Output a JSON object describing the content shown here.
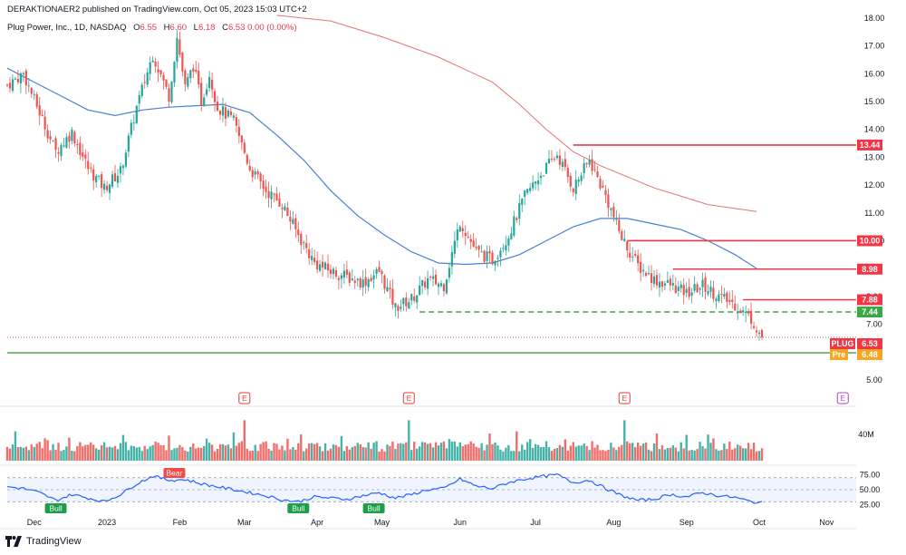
{
  "header": {
    "published": "DERAKTIONAER2 published on TradingView.com, Oct 05, 2023 15:03 UTC+2",
    "symbol": "Plug Power, Inc., 1D, NASDAQ",
    "o_label": "O",
    "o_value": "6.55",
    "h_label": "H",
    "h_value": "6.60",
    "l_label": "L",
    "l_value": "6.18",
    "c_label": "C",
    "c_value": "6.53",
    "change": "0.00 (0.00%)"
  },
  "footer": {
    "brand": "TradingView"
  },
  "colors": {
    "up": "#26a69a",
    "down": "#ef5350",
    "line_red": "#f23645",
    "ma50": "#4a7fd4",
    "ma200": "#e57373",
    "rsi": "#2962ff",
    "support": "#43a047"
  },
  "chart_data": {
    "type": "candlestick",
    "symbol": "PLUG",
    "exchange": "NASDAQ",
    "timeframe": "1D",
    "x_ticks": [
      "Dec",
      "2023",
      "Feb",
      "Mar",
      "Apr",
      "May",
      "Jun",
      "Jul",
      "Aug",
      "Sep",
      "Oct",
      "Nov"
    ],
    "y_ticks": [
      "18.00",
      "17.00",
      "16.00",
      "15.00",
      "14.00",
      "13.00",
      "12.00",
      "11.00",
      "10.00",
      "9.00",
      "8.00",
      "7.00",
      "6.00",
      "5.00"
    ],
    "ylim": [
      4.8,
      18.0
    ],
    "price_path": [
      [
        0,
        15.6
      ],
      [
        6,
        16.0
      ],
      [
        12,
        14.6
      ],
      [
        18,
        13.2
      ],
      [
        24,
        13.9
      ],
      [
        30,
        12.6
      ],
      [
        36,
        11.9
      ],
      [
        42,
        12.5
      ],
      [
        48,
        14.8
      ],
      [
        54,
        16.7
      ],
      [
        60,
        15.2
      ],
      [
        63,
        17.3
      ],
      [
        66,
        15.5
      ],
      [
        69,
        16.3
      ],
      [
        72,
        15.0
      ],
      [
        75,
        16.0
      ],
      [
        78,
        14.8
      ],
      [
        84,
        14.3
      ],
      [
        90,
        12.6
      ],
      [
        96,
        11.8
      ],
      [
        102,
        11.3
      ],
      [
        108,
        10.2
      ],
      [
        114,
        9.2
      ],
      [
        120,
        8.9
      ],
      [
        126,
        8.7
      ],
      [
        132,
        8.5
      ],
      [
        138,
        8.9
      ],
      [
        144,
        7.6
      ],
      [
        150,
        7.9
      ],
      [
        156,
        8.6
      ],
      [
        162,
        8.4
      ],
      [
        168,
        10.7
      ],
      [
        174,
        9.6
      ],
      [
        180,
        9.3
      ],
      [
        186,
        10.2
      ],
      [
        192,
        11.6
      ],
      [
        198,
        12.4
      ],
      [
        204,
        13.1
      ],
      [
        210,
        11.9
      ],
      [
        216,
        12.9
      ],
      [
        222,
        11.6
      ],
      [
        228,
        10.1
      ],
      [
        234,
        9.1
      ],
      [
        240,
        8.6
      ],
      [
        246,
        8.4
      ],
      [
        252,
        8.1
      ],
      [
        258,
        8.4
      ],
      [
        264,
        8.0
      ],
      [
        270,
        7.7
      ],
      [
        276,
        7.2
      ],
      [
        280,
        6.53
      ]
    ],
    "ma50_path": [
      [
        0,
        16.2
      ],
      [
        10,
        15.7
      ],
      [
        20,
        15.2
      ],
      [
        30,
        14.7
      ],
      [
        40,
        14.5
      ],
      [
        50,
        14.7
      ],
      [
        60,
        14.8
      ],
      [
        70,
        14.85
      ],
      [
        80,
        14.9
      ],
      [
        90,
        14.6
      ],
      [
        100,
        13.8
      ],
      [
        110,
        12.9
      ],
      [
        120,
        11.8
      ],
      [
        130,
        10.9
      ],
      [
        140,
        10.2
      ],
      [
        150,
        9.6
      ],
      [
        160,
        9.2
      ],
      [
        170,
        9.15
      ],
      [
        180,
        9.2
      ],
      [
        190,
        9.5
      ],
      [
        200,
        10.0
      ],
      [
        210,
        10.5
      ],
      [
        220,
        10.8
      ],
      [
        230,
        10.8
      ],
      [
        240,
        10.6
      ],
      [
        250,
        10.4
      ],
      [
        260,
        10.0
      ],
      [
        270,
        9.5
      ],
      [
        278,
        9.0
      ]
    ],
    "ma200_path": [
      [
        100,
        18.1
      ],
      [
        120,
        17.9
      ],
      [
        140,
        17.3
      ],
      [
        160,
        16.6
      ],
      [
        180,
        15.7
      ],
      [
        190,
        14.9
      ],
      [
        200,
        14.0
      ],
      [
        210,
        13.2
      ],
      [
        220,
        12.7
      ],
      [
        230,
        12.3
      ],
      [
        240,
        11.9
      ],
      [
        250,
        11.6
      ],
      [
        260,
        11.3
      ],
      [
        278,
        11.05
      ]
    ],
    "horizontal_levels": [
      {
        "label": "13.44",
        "value": 13.44,
        "start": 210
      },
      {
        "label": "10.00",
        "value": 10.0,
        "start": 230
      },
      {
        "label": "8.98",
        "value": 8.98,
        "start": 247
      },
      {
        "label": "7.88",
        "value": 7.88,
        "start": 273
      },
      {
        "label": "7.44",
        "value": 7.44,
        "start": 153,
        "style": "dashed-green"
      },
      {
        "label": "5.97",
        "value": 5.97,
        "start": 0,
        "style": "solid-green"
      }
    ],
    "price_tags": [
      {
        "name": "PLUG",
        "label": "6.53"
      },
      {
        "name": "Pre",
        "label": "6.48"
      }
    ],
    "earnings_markers": [
      {
        "day": 88,
        "label": "E"
      },
      {
        "day": 149,
        "label": "E"
      },
      {
        "day": 229,
        "label": "E"
      },
      {
        "day": 310,
        "label": "E"
      }
    ],
    "volume": {
      "axis_label": "40M",
      "axis_value": 40
    },
    "rsi": {
      "y_ticks": [
        "75.00",
        "50.00",
        "25.00"
      ],
      "ylim": [
        15,
        85
      ],
      "path": [
        [
          0,
          55
        ],
        [
          6,
          52
        ],
        [
          12,
          45
        ],
        [
          18,
          32
        ],
        [
          24,
          42
        ],
        [
          30,
          36
        ],
        [
          36,
          30
        ],
        [
          42,
          42
        ],
        [
          48,
          60
        ],
        [
          54,
          73
        ],
        [
          60,
          66
        ],
        [
          66,
          67
        ],
        [
          72,
          60
        ],
        [
          78,
          55
        ],
        [
          84,
          50
        ],
        [
          90,
          45
        ],
        [
          96,
          40
        ],
        [
          102,
          33
        ],
        [
          108,
          30
        ],
        [
          114,
          38
        ],
        [
          120,
          36
        ],
        [
          126,
          34
        ],
        [
          132,
          40
        ],
        [
          138,
          45
        ],
        [
          144,
          36
        ],
        [
          150,
          42
        ],
        [
          156,
          50
        ],
        [
          162,
          52
        ],
        [
          168,
          68
        ],
        [
          174,
          56
        ],
        [
          180,
          52
        ],
        [
          186,
          62
        ],
        [
          192,
          68
        ],
        [
          198,
          72
        ],
        [
          204,
          75
        ],
        [
          210,
          62
        ],
        [
          216,
          66
        ],
        [
          222,
          52
        ],
        [
          228,
          40
        ],
        [
          234,
          32
        ],
        [
          240,
          34
        ],
        [
          246,
          42
        ],
        [
          252,
          38
        ],
        [
          258,
          45
        ],
        [
          264,
          40
        ],
        [
          270,
          37
        ],
        [
          276,
          30
        ],
        [
          280,
          28
        ]
      ],
      "signals": [
        {
          "day": 18,
          "label": "Bull",
          "kind": "bull"
        },
        {
          "day": 62,
          "label": "Bear",
          "kind": "bear"
        },
        {
          "day": 108,
          "label": "Bull",
          "kind": "bull"
        },
        {
          "day": 136,
          "label": "Bull",
          "kind": "bull"
        }
      ]
    }
  }
}
